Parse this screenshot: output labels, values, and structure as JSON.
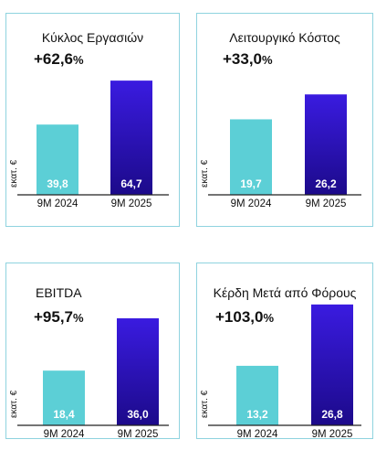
{
  "colors": {
    "bar_2024": "#5ccfd6",
    "bar_2025_top": "#3a1be0",
    "bar_2025_bottom": "#1c0a8a",
    "card_border": "#8fd3df",
    "axis": "#222222"
  },
  "chart_data": [
    {
      "type": "bar",
      "title": "Κύκλος Εργασιών",
      "change": "+62,6",
      "change_unit": "%",
      "ylabel": "εκατ. €",
      "categories": [
        "9M 2024",
        "9M 2025"
      ],
      "values": [
        39.8,
        64.7
      ],
      "value_labels": [
        "39,8",
        "64,7"
      ]
    },
    {
      "type": "bar",
      "title": "Λειτουργικό Κόστος",
      "change": "+33,0",
      "change_unit": "%",
      "ylabel": "εκατ. €",
      "categories": [
        "9M 2024",
        "9M 2025"
      ],
      "values": [
        19.7,
        26.2
      ],
      "value_labels": [
        "19,7",
        "26,2"
      ]
    },
    {
      "type": "bar",
      "title": "EBITDA",
      "change": "+95,7",
      "change_unit": "%",
      "ylabel": "εκατ. €",
      "categories": [
        "9M 2024",
        "9M 2025"
      ],
      "values": [
        18.4,
        36.0
      ],
      "value_labels": [
        "18,4",
        "36,0"
      ]
    },
    {
      "type": "bar",
      "title": "Κέρδη Μετά από Φόρους",
      "change": "+103,0",
      "change_unit": "%",
      "ylabel": "εκατ. €",
      "categories": [
        "9M 2024",
        "9M 2025"
      ],
      "values": [
        13.2,
        26.8
      ],
      "value_labels": [
        "13,2",
        "26,8"
      ]
    }
  ]
}
